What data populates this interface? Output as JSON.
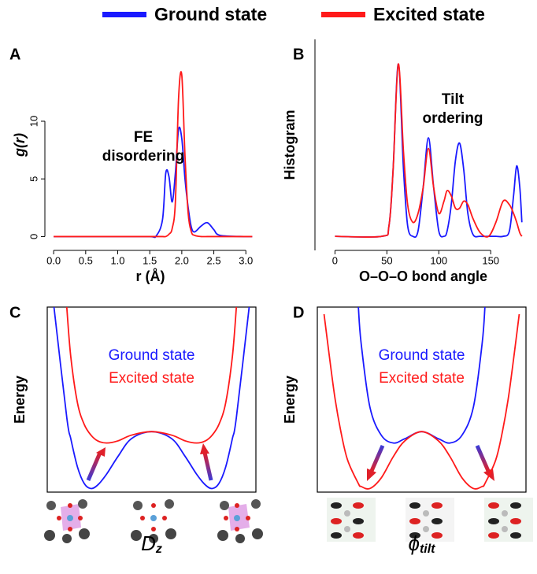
{
  "chart_data": [
    {
      "type": "line",
      "panel": "A",
      "ylabel": "g(r)",
      "xlabel": "r (Å)",
      "legend": "top",
      "annotation": [
        "FE",
        "disordering"
      ],
      "xlim": [
        -0.1,
        3.12
      ],
      "ylim": [
        -1.2,
        17.1
      ],
      "xticks": [
        {
          "value": 0,
          "label": "0.0"
        },
        0.5,
        {
          "value": 1,
          "label": "1.0"
        },
        1.5,
        {
          "value": 2,
          "label": "2.0"
        },
        2.5,
        {
          "value": 3,
          "label": "3.0"
        }
      ],
      "yticks": [
        0,
        5,
        10
      ],
      "frame": "axes",
      "x": [
        0,
        0.5,
        1.0,
        1.5,
        1.6,
        1.7,
        1.75,
        1.8,
        1.85,
        1.9,
        1.95,
        2.0,
        2.05,
        2.1,
        2.15,
        2.2,
        2.3,
        2.4,
        2.5,
        2.6,
        3.0,
        3.1
      ],
      "series": [
        {
          "name": "Ground state",
          "color": "#1a1aff",
          "values": [
            0,
            0,
            0,
            0,
            0.05,
            1.5,
            5.5,
            5.2,
            3.0,
            5.5,
            9.3,
            8.5,
            5,
            2.5,
            0.8,
            0.4,
            0.9,
            1.2,
            0.6,
            0.1,
            0,
            0
          ]
        },
        {
          "name": "Excited state",
          "color": "#ff1a1a",
          "values": [
            0,
            0,
            0,
            0,
            0,
            0,
            0,
            0.2,
            0.7,
            3,
            12,
            14,
            7,
            2,
            0.4,
            0.1,
            0,
            0,
            0,
            0,
            0,
            0
          ]
        }
      ]
    },
    {
      "type": "line",
      "panel": "B",
      "ylabel": "Histogram",
      "xlabel": "O–O–O bond angle",
      "annotation": [
        "Tilt",
        "ordering"
      ],
      "xlim": [
        -17,
        187
      ],
      "ylim": [
        -0.06,
        1.14
      ],
      "xticks": [
        0,
        50,
        100,
        150
      ],
      "frame": "axes",
      "x": [
        0,
        45,
        52,
        56,
        61,
        66,
        70,
        75,
        80,
        85,
        90,
        95,
        100,
        105,
        108,
        112,
        116,
        120,
        124,
        128,
        133,
        140,
        148,
        155,
        162,
        168,
        172,
        175,
        178,
        180
      ],
      "series": [
        {
          "color": "#1a1aff",
          "values": [
            0.02,
            0.02,
            0.08,
            0.4,
            1.0,
            0.4,
            0.08,
            0.02,
            0.05,
            0.3,
            0.58,
            0.3,
            0.05,
            0.02,
            0.05,
            0.2,
            0.45,
            0.55,
            0.4,
            0.15,
            0.03,
            0.02,
            0.02,
            0.02,
            0.02,
            0.05,
            0.25,
            0.42,
            0.3,
            0.1
          ]
        },
        {
          "color": "#ff1a1a",
          "values": [
            0.02,
            0.02,
            0.08,
            0.4,
            1.0,
            0.5,
            0.2,
            0.1,
            0.15,
            0.3,
            0.52,
            0.3,
            0.15,
            0.22,
            0.28,
            0.25,
            0.18,
            0.18,
            0.22,
            0.2,
            0.12,
            0.04,
            0.02,
            0.1,
            0.22,
            0.2,
            0.15,
            0.1,
            0.04,
            0.02
          ]
        }
      ]
    },
    {
      "type": "line",
      "panel": "C",
      "ylabel": "Energy",
      "xlabel": [
        "D",
        "z"
      ],
      "legend": "inside",
      "xlim": [
        -1.55,
        1.55
      ],
      "ylim": [
        0,
        2.6
      ],
      "frame": "box",
      "x": [
        -1.45,
        -1.26,
        -1.2,
        -1.1,
        -1.0,
        -0.9,
        -0.8,
        -0.67,
        -0.5,
        -0.3,
        0,
        0.3,
        0.5,
        0.67,
        0.8,
        0.9,
        1.0,
        1.1,
        1.2,
        1.26,
        1.45
      ],
      "series": [
        {
          "name": "Ground state",
          "color": "#1a1aff",
          "values": [
            2.6,
            1.05,
            0.75,
            0.35,
            0.12,
            0.05,
            0.1,
            0.25,
            0.5,
            0.75,
            0.85,
            0.75,
            0.5,
            0.25,
            0.1,
            0.05,
            0.12,
            0.35,
            0.75,
            1.05,
            2.6
          ]
        },
        {
          "name": "Excited state",
          "color": "#ff1a1a",
          "values": [
            null,
            2.6,
            1.9,
            1.25,
            0.95,
            0.8,
            0.72,
            0.69,
            0.72,
            0.8,
            0.85,
            0.8,
            0.72,
            0.69,
            0.72,
            0.8,
            0.95,
            1.25,
            1.9,
            2.6,
            null
          ]
        }
      ]
    },
    {
      "type": "line",
      "panel": "D",
      "ylabel": "Energy",
      "xlabel": [
        "ϕ",
        "tilt"
      ],
      "legend": "inside",
      "xlim": [
        -1.55,
        1.55
      ],
      "ylim": [
        0,
        2.6
      ],
      "frame": "box",
      "x": [
        -1.45,
        -1.3,
        -1.2,
        -1.1,
        -0.94,
        -0.9,
        -0.77,
        -0.6,
        -0.42,
        -0.25,
        0,
        0.25,
        0.42,
        0.6,
        0.77,
        0.9,
        0.94,
        1.1,
        1.2,
        1.3,
        1.45
      ],
      "series": [
        {
          "name": "Ground state",
          "color": "#1a1aff",
          "values": [
            null,
            null,
            null,
            null,
            2.6,
            2.1,
            1.2,
            0.8,
            0.69,
            0.75,
            0.85,
            0.75,
            0.69,
            0.8,
            1.2,
            2.1,
            2.6,
            null,
            null,
            null,
            null
          ]
        },
        {
          "name": "Excited state",
          "color": "#ff1a1a",
          "values": [
            2.5,
            1.4,
            0.85,
            0.45,
            0.12,
            0.08,
            0.05,
            0.2,
            0.5,
            0.72,
            0.85,
            0.72,
            0.5,
            0.2,
            0.05,
            0.08,
            0.12,
            0.45,
            0.85,
            1.4,
            2.5
          ]
        }
      ]
    }
  ]
}
